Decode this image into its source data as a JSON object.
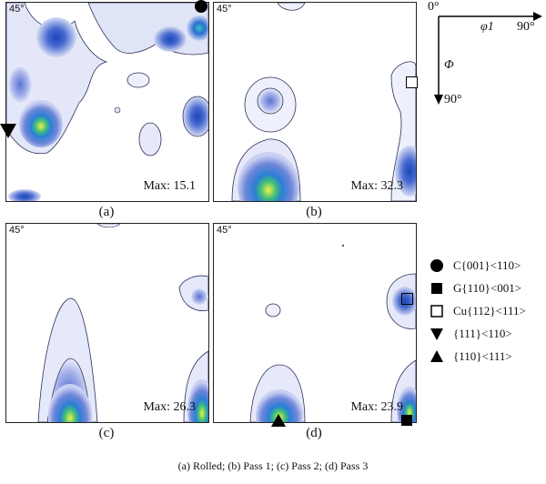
{
  "panels": [
    {
      "angle": "45°",
      "max": "Max: 15.1",
      "caption": "(a)"
    },
    {
      "angle": "45°",
      "max": "Max: 32.3",
      "caption": "(b)"
    },
    {
      "angle": "45°",
      "max": "Max: 26.3",
      "caption": "(c)"
    },
    {
      "angle": "45°",
      "max": "Max: 23.9",
      "caption": "(d)"
    }
  ],
  "axes": {
    "origin": "0°",
    "phi1": "φ1",
    "phi1_end": "90°",
    "Phi": "Φ",
    "Phi_end": "90°"
  },
  "legend": [
    {
      "symbol": "filled-circle",
      "label": "C{001}<110>"
    },
    {
      "symbol": "filled-square",
      "label": "G{110}<001>"
    },
    {
      "symbol": "open-square",
      "label": "Cu{112}<111>"
    },
    {
      "symbol": "filled-down-triangle",
      "label": "{111}<110>"
    },
    {
      "symbol": "filled-up-triangle",
      "label": "{110}<111>"
    }
  ],
  "footer": "(a) Rolled; (b) Pass 1; (c) Pass 2; (d) Pass 3"
}
